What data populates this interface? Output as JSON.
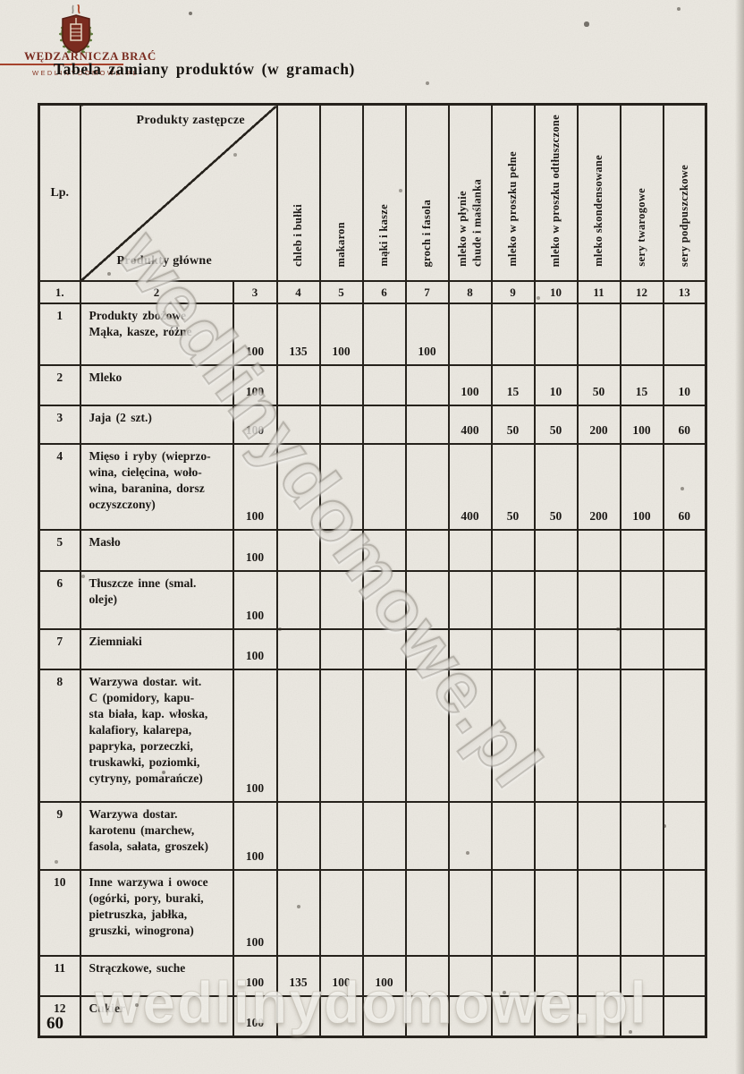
{
  "colors": {
    "paper": "#ebe8e1",
    "ink": "#1c1916",
    "brand_maroon": "#7c2d21",
    "rule_red": "#a8432c",
    "laurel_green": "#5f7c3c"
  },
  "brand": {
    "name": "WĘDZARNICZA BRAĆ",
    "site": "WEDLINYDOMOWE.PL",
    "logo_icon": "smokehouse-shield-icon"
  },
  "page": {
    "title": "Tabela zamiany produktów (w gramach)",
    "number": "60"
  },
  "watermarks": {
    "diagonal": "wedlinydomowe.pl",
    "bottom": "wedlinydomowe.pl"
  },
  "table": {
    "corner": {
      "lp": "Lp.",
      "top_label": "Produkty zastępcze",
      "bottom_label": "Produkty główne"
    },
    "substitute_headers": [
      "chleb i bułki",
      "makaron",
      "mąki i kasze",
      "groch i fasola",
      "mleko w płynie\nchude i maślanka",
      "mleko w proszku pełne",
      "mleko w proszku odtłuszczone",
      "mleko skondensowane",
      "sery twarogowe",
      "sery podpuszczkowe"
    ],
    "column_numbers": [
      "1.",
      "2",
      "3",
      "4",
      "5",
      "6",
      "7",
      "8",
      "9",
      "10",
      "11",
      "12",
      "13"
    ],
    "rows": [
      {
        "lp": "1",
        "name": "Produkty zbożowe\nMąka, kasze, różne",
        "values": [
          "100",
          "135",
          "100",
          "",
          "100",
          "",
          "",
          "",
          "",
          "",
          ""
        ]
      },
      {
        "lp": "2",
        "name": "Mleko",
        "values": [
          "100",
          "",
          "",
          "",
          "",
          "100",
          "15",
          "10",
          "50",
          "15",
          "10"
        ]
      },
      {
        "lp": "3",
        "name": "Jaja (2 szt.)",
        "values": [
          "100",
          "",
          "",
          "",
          "",
          "400",
          "50",
          "50",
          "200",
          "100",
          "60"
        ]
      },
      {
        "lp": "4",
        "name": "Mięso i ryby (wieprzo-\nwina, cielęcina, woło-\nwina, baranina, dorsz\noczyszczony)",
        "values": [
          "100",
          "",
          "",
          "",
          "",
          "400",
          "50",
          "50",
          "200",
          "100",
          "60"
        ]
      },
      {
        "lp": "5",
        "name": "Masło",
        "values": [
          "100",
          "",
          "",
          "",
          "",
          "",
          "",
          "",
          "",
          "",
          ""
        ]
      },
      {
        "lp": "6",
        "name": "Tłuszcze inne (smal.\noleje)",
        "values": [
          "100",
          "",
          "",
          "",
          "",
          "",
          "",
          "",
          "",
          "",
          ""
        ]
      },
      {
        "lp": "7",
        "name": "Ziemniaki",
        "values": [
          "100",
          "",
          "",
          "",
          "",
          "",
          "",
          "",
          "",
          "",
          ""
        ]
      },
      {
        "lp": "8",
        "name": "Warzywa dostar. wit.\nC (pomidory, kapu-\nsta biała, kap. włoska,\nkalafiory, kalarepa,\npapryka, porzeczki,\ntruskawki, poziomki,\ncytryny, pomarańcze)",
        "values": [
          "100",
          "",
          "",
          "",
          "",
          "",
          "",
          "",
          "",
          "",
          ""
        ]
      },
      {
        "lp": "9",
        "name": "Warzywa dostar.\nkarotenu (marchew,\nfasola, sałata, groszek)",
        "values": [
          "100",
          "",
          "",
          "",
          "",
          "",
          "",
          "",
          "",
          "",
          ""
        ]
      },
      {
        "lp": "10",
        "name": "Inne warzywa i owoce\n(ogórki, pory, buraki,\npietruszka, jabłka,\ngruszki, winogrona)",
        "values": [
          "100",
          "",
          "",
          "",
          "",
          "",
          "",
          "",
          "",
          "",
          ""
        ]
      },
      {
        "lp": "11",
        "name": "Strączkowe, suche",
        "values": [
          "100",
          "135",
          "100",
          "100",
          "",
          "",
          "",
          "",
          "",
          "",
          ""
        ]
      },
      {
        "lp": "12",
        "name": "Cukier",
        "values": [
          "100",
          "",
          "",
          "",
          "",
          "",
          "",
          "",
          "",
          "",
          ""
        ]
      }
    ]
  }
}
